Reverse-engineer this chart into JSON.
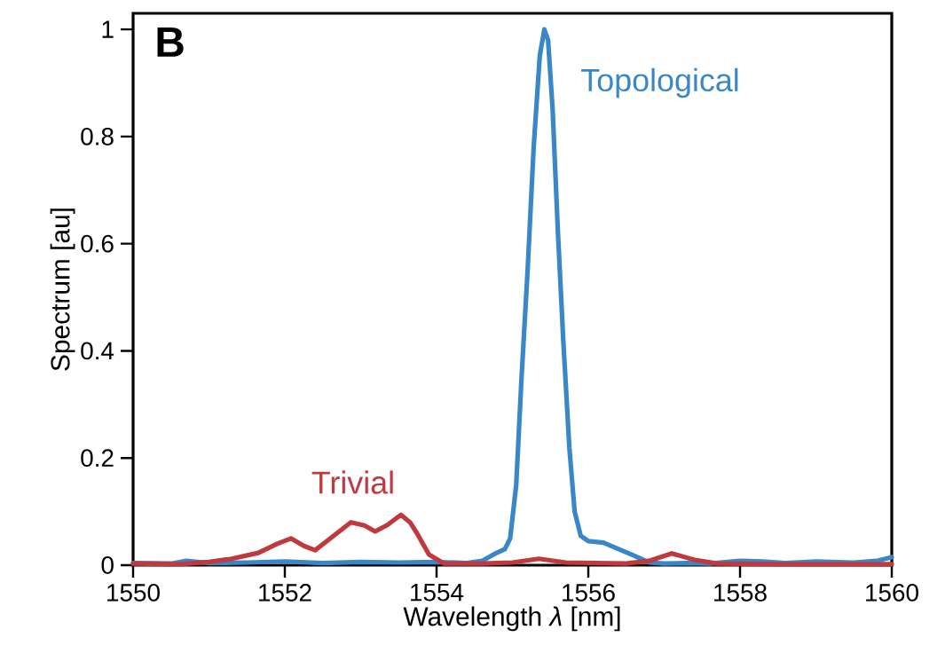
{
  "chart_data": {
    "type": "line",
    "title": "B",
    "xlabel": "Wavelength *λ* [nm]",
    "ylabel": "Spectrum [au]",
    "xlim": [
      1550,
      1560
    ],
    "xticks": [
      1550,
      1552,
      1554,
      1556,
      1558,
      1560
    ],
    "ylim": [
      0,
      1.03
    ],
    "yticks": [
      0,
      0.2,
      0.4,
      0.6,
      0.8,
      1
    ],
    "grid": false,
    "legend": false,
    "marker": "none",
    "line_style": "solid",
    "series": [
      {
        "name": "Topological",
        "color": "#3a87c8",
        "x": [
          1550,
          1550.5,
          1550.7,
          1551,
          1551.5,
          1552,
          1552.5,
          1553,
          1553.5,
          1554,
          1554.4,
          1554.6,
          1554.75,
          1554.9,
          1554.97,
          1555.05,
          1555.12,
          1555.2,
          1555.28,
          1555.36,
          1555.42,
          1555.47,
          1555.53,
          1555.6,
          1555.67,
          1555.75,
          1555.82,
          1555.9,
          1556.0,
          1556.2,
          1556.4,
          1556.6,
          1556.8,
          1557,
          1557.3,
          1557.6,
          1558,
          1558.3,
          1558.6,
          1559,
          1559.5,
          1559.8,
          1560
        ],
        "values": [
          0.004,
          0.003,
          0.008,
          0.004,
          0.005,
          0.007,
          0.004,
          0.006,
          0.005,
          0.006,
          0.004,
          0.008,
          0.02,
          0.03,
          0.05,
          0.15,
          0.35,
          0.55,
          0.78,
          0.95,
          1.0,
          0.98,
          0.85,
          0.62,
          0.42,
          0.22,
          0.1,
          0.055,
          0.045,
          0.042,
          0.03,
          0.018,
          0.005,
          0.003,
          0.004,
          0.003,
          0.008,
          0.007,
          0.004,
          0.007,
          0.005,
          0.008,
          0.015
        ]
      },
      {
        "name": "Trivial",
        "color": "#c0393f",
        "x": [
          1550,
          1550.6,
          1551,
          1551.3,
          1551.65,
          1551.9,
          1552.08,
          1552.25,
          1552.4,
          1552.6,
          1552.87,
          1553.05,
          1553.19,
          1553.35,
          1553.53,
          1553.65,
          1553.74,
          1553.9,
          1554.1,
          1554.6,
          1555,
          1555.35,
          1555.7,
          1556.5,
          1556.8,
          1557.1,
          1557.4,
          1557.7,
          1558.5,
          1560
        ],
        "values": [
          0.003,
          0.002,
          0.006,
          0.012,
          0.023,
          0.04,
          0.05,
          0.036,
          0.028,
          0.05,
          0.08,
          0.074,
          0.063,
          0.075,
          0.094,
          0.08,
          0.06,
          0.02,
          0.003,
          0.003,
          0.005,
          0.012,
          0.005,
          0.003,
          0.008,
          0.022,
          0.01,
          0.003,
          0.002,
          0.002
        ]
      }
    ]
  }
}
